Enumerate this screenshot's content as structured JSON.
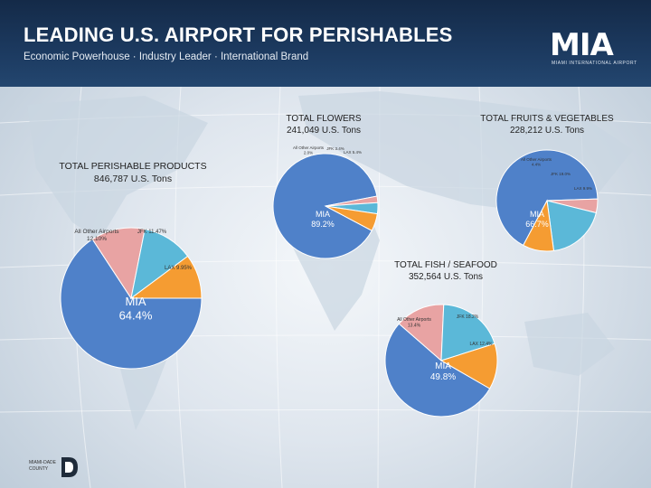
{
  "header": {
    "title": "LEADING U.S. AIRPORT FOR PERISHABLES",
    "subtitle": "Economic Powerhouse · Industry Leader · International Brand",
    "logo_text": "MIA",
    "logo_subtext": "MIAMI INTERNATIONAL AIRPORT"
  },
  "footer": {
    "county_logo_line1": "MIAMI-DADE",
    "county_logo_line2": "COUNTY"
  },
  "colors": {
    "mia": "#4f81c9",
    "jfk": "#5bb8d8",
    "lax": "#f59c32",
    "other": "#e8a3a3",
    "header": "#1c3a60"
  },
  "charts": {
    "perishables": {
      "title": "TOTAL PERISHABLE PRODUCTS",
      "total": "846,787 U.S. Tons"
    },
    "flowers": {
      "title": "TOTAL FLOWERS",
      "total": "241,049 U.S. Tons"
    },
    "fruits": {
      "title": "TOTAL FRUITS  & VEGETABLES",
      "total": "228,212 U.S. Tons"
    },
    "fish": {
      "title": "TOTAL FISH / SEAFOOD",
      "total": "352,564 U.S. Tons"
    }
  },
  "chart_data": [
    {
      "type": "pie",
      "id": "perishables",
      "title": "TOTAL PERISHABLE PRODUCTS 846,787 U.S. Tons",
      "slices": [
        {
          "name": "MIA",
          "value": 64.4,
          "label": "MIA",
          "label2": "64.4%",
          "color": "#4f81c9"
        },
        {
          "name": "All Other Airports",
          "value": 12.1,
          "label": "All Other Airports",
          "label2": "12.10%",
          "color": "#e8a3a3"
        },
        {
          "name": "JFK",
          "value": 11.47,
          "label": "JFK 11.47%",
          "color": "#5bb8d8"
        },
        {
          "name": "LAX",
          "value": 9.95,
          "label": "LAX 9.95%",
          "color": "#f59c32"
        }
      ]
    },
    {
      "type": "pie",
      "id": "flowers",
      "title": "TOTAL FLOWERS 241,049 U.S. Tons",
      "slices": [
        {
          "name": "MIA",
          "value": 89.2,
          "label": "MIA",
          "label2": "89.2%",
          "color": "#4f81c9"
        },
        {
          "name": "All Other Airports",
          "value": 2.0,
          "label": "All Other Airports",
          "label2": "2.0%",
          "color": "#e8a3a3"
        },
        {
          "name": "JFK",
          "value": 3.4,
          "label": "JFK 3.4%",
          "color": "#5bb8d8"
        },
        {
          "name": "LAX",
          "value": 5.4,
          "label": "LAX 5.4%",
          "color": "#f59c32"
        }
      ]
    },
    {
      "type": "pie",
      "id": "fruits",
      "title": "TOTAL FRUITS & VEGETABLES 228,212 U.S. Tons",
      "slices": [
        {
          "name": "MIA",
          "value": 66.7,
          "label": "MIA",
          "label2": "66.7%",
          "color": "#4f81c9"
        },
        {
          "name": "All Other Airports",
          "value": 4.4,
          "label": "All Other Airports",
          "label2": "4.4%",
          "color": "#e8a3a3"
        },
        {
          "name": "JFK",
          "value": 19.0,
          "label": "JFK 19.0%",
          "color": "#5bb8d8"
        },
        {
          "name": "LAX",
          "value": 9.9,
          "label": "LAX 9.9%",
          "color": "#f59c32"
        }
      ]
    },
    {
      "type": "pie",
      "id": "fish",
      "title": "TOTAL FISH / SEAFOOD 352,564 U.S. Tons",
      "slices": [
        {
          "name": "MIA",
          "value": 49.8,
          "label": "MIA",
          "label2": "49.8%",
          "color": "#4f81c9"
        },
        {
          "name": "All Other Airports",
          "value": 13.4,
          "label": "All Other Airports",
          "label2": "13.4%",
          "color": "#e8a3a3"
        },
        {
          "name": "JFK",
          "value": 18.2,
          "label": "JFK 18.2%",
          "color": "#5bb8d8"
        },
        {
          "name": "LAX",
          "value": 12.4,
          "label": "LAX 12.4%",
          "color": "#f59c32"
        }
      ]
    }
  ]
}
